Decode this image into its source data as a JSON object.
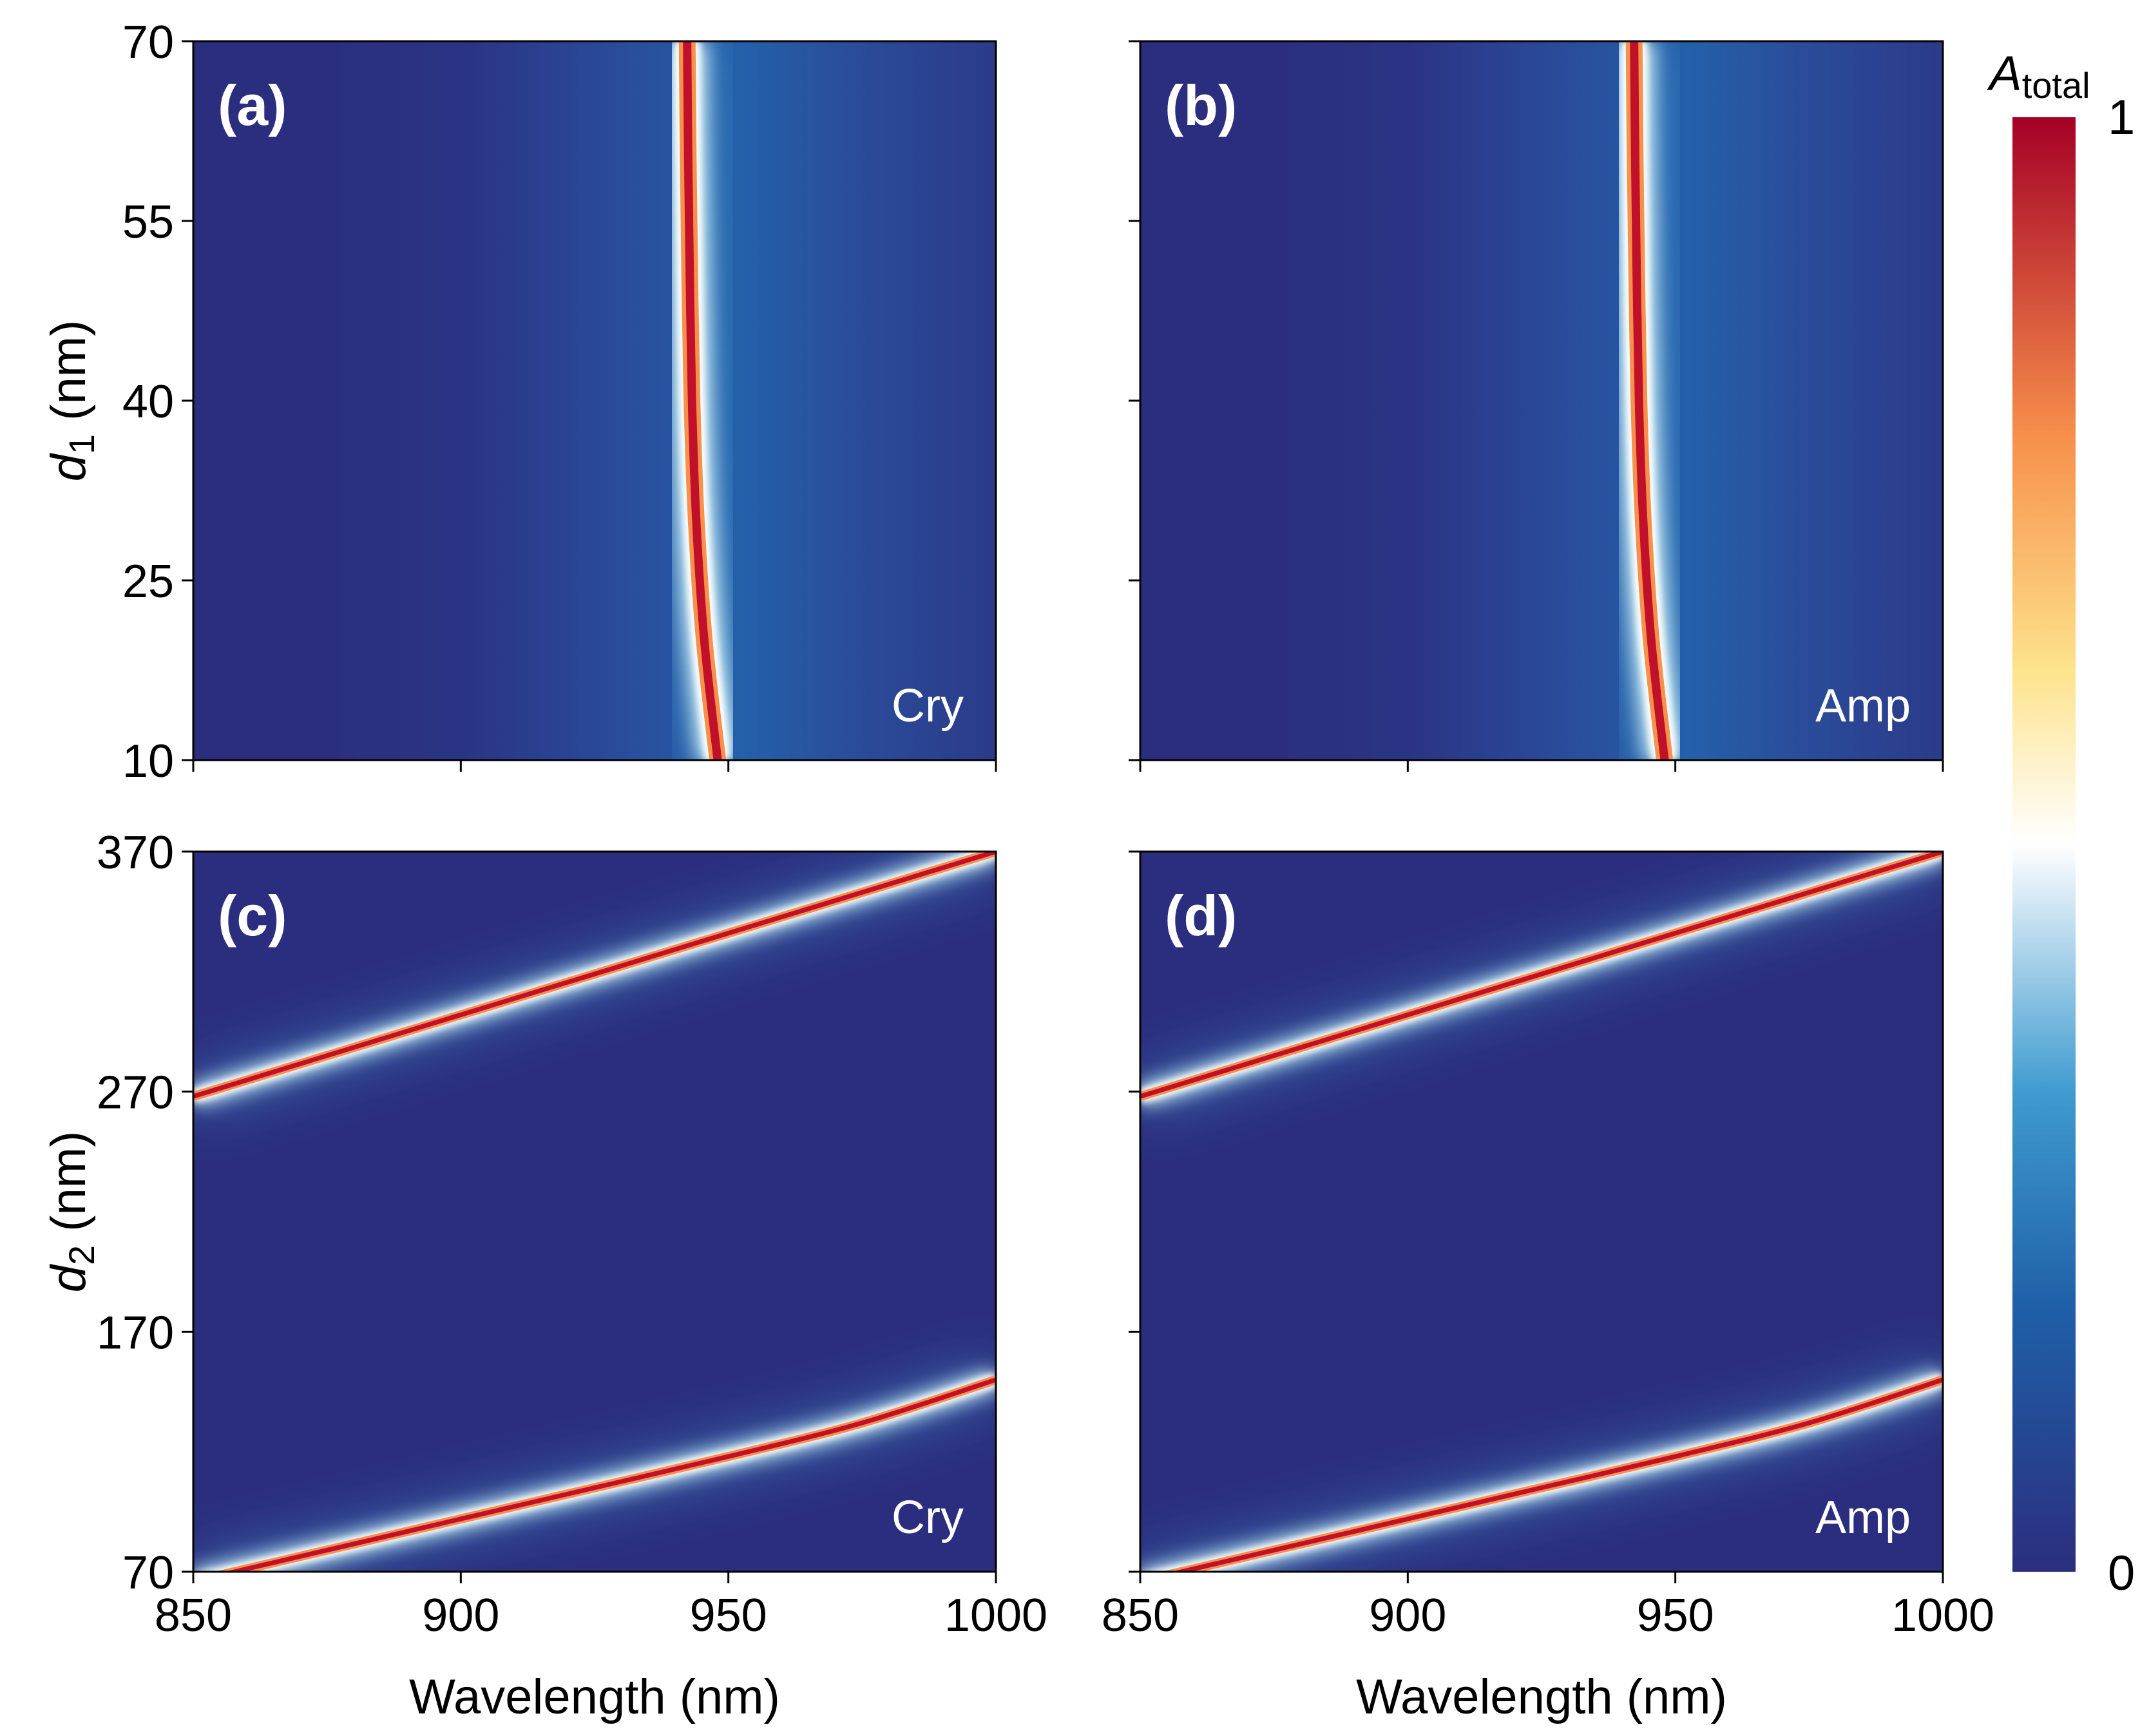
{
  "chart_data": [
    {
      "type": "heatmap",
      "panel_label": "(a)",
      "material": "Cry",
      "ylabel": "d",
      "ylabel_sub": "1",
      "ylabel_unit": "(nm)",
      "xlim": [
        850,
        1000
      ],
      "ylim": [
        10,
        70
      ],
      "xticks": [
        850,
        900,
        950,
        1000
      ],
      "yticks": [
        10,
        25,
        40,
        55,
        70
      ],
      "show_xticklabels": false,
      "show_yticklabels": true,
      "resonance_curves": [
        {
          "d": [
            10,
            20,
            30,
            40,
            50,
            60,
            70
          ],
          "wavelength": [
            948,
            945.5,
            944,
            943.2,
            942.8,
            942.5,
            942.3
          ]
        }
      ],
      "background_bands": [
        {
          "center": 955,
          "width": 40
        }
      ]
    },
    {
      "type": "heatmap",
      "panel_label": "(b)",
      "material": "Amp",
      "xlim": [
        850,
        1000
      ],
      "ylim": [
        10,
        70
      ],
      "xticks": [
        850,
        900,
        950,
        1000
      ],
      "yticks": [
        10,
        25,
        40,
        55,
        70
      ],
      "show_xticklabels": false,
      "show_yticklabels": false,
      "resonance_curves": [
        {
          "d": [
            10,
            20,
            30,
            40,
            50,
            60,
            70
          ],
          "wavelength": [
            948,
            945.5,
            944,
            943.2,
            942.8,
            942.5,
            942.3
          ]
        }
      ],
      "background_bands": [
        {
          "center": 955,
          "width": 40
        }
      ]
    },
    {
      "type": "heatmap",
      "panel_label": "(c)",
      "material": "Cry",
      "ylabel": "d",
      "ylabel_sub": "2",
      "ylabel_unit": "(nm)",
      "xlabel": "Wavelength (nm)",
      "xlim": [
        850,
        1000
      ],
      "ylim": [
        70,
        370
      ],
      "xticks": [
        850,
        900,
        950,
        1000
      ],
      "yticks": [
        70,
        170,
        270,
        370
      ],
      "show_xticklabels": true,
      "show_yticklabels": true,
      "resonance_curves": [
        {
          "wavelength": [
            850,
            875,
            900,
            925,
            950,
            975,
            1000
          ],
          "d": [
            268,
            285,
            302,
            319,
            336,
            353,
            370
          ]
        },
        {
          "wavelength": [
            850,
            875,
            900,
            925,
            950,
            975,
            1000
          ],
          "d": [
            66,
            79,
            92,
            105,
            118,
            132,
            150
          ]
        }
      ]
    },
    {
      "type": "heatmap",
      "panel_label": "(d)",
      "material": "Amp",
      "xlabel": "Wavelength (nm)",
      "xlim": [
        850,
        1000
      ],
      "ylim": [
        70,
        370
      ],
      "xticks": [
        850,
        900,
        950,
        1000
      ],
      "yticks": [
        70,
        170,
        270,
        370
      ],
      "show_xticklabels": true,
      "show_yticklabels": false,
      "resonance_curves": [
        {
          "wavelength": [
            850,
            875,
            900,
            925,
            950,
            975,
            1000
          ],
          "d": [
            268,
            285,
            302,
            319,
            336,
            353,
            370
          ]
        },
        {
          "wavelength": [
            850,
            875,
            900,
            925,
            950,
            975,
            1000
          ],
          "d": [
            66,
            79,
            92,
            105,
            118,
            132,
            150
          ]
        }
      ]
    }
  ],
  "colorbar": {
    "label": "A",
    "label_sub": "total",
    "min": 0,
    "max": 1,
    "min_label": "0",
    "max_label": "1",
    "colormap": "RdYlBu_r",
    "stops": [
      "#2b2e7e",
      "#1f5fa8",
      "#3f9bd0",
      "#ffffff",
      "#fde38c",
      "#f7904b",
      "#a50026"
    ]
  },
  "colors": {
    "background": "#2b2e7e",
    "band": "#2b5aa8"
  }
}
